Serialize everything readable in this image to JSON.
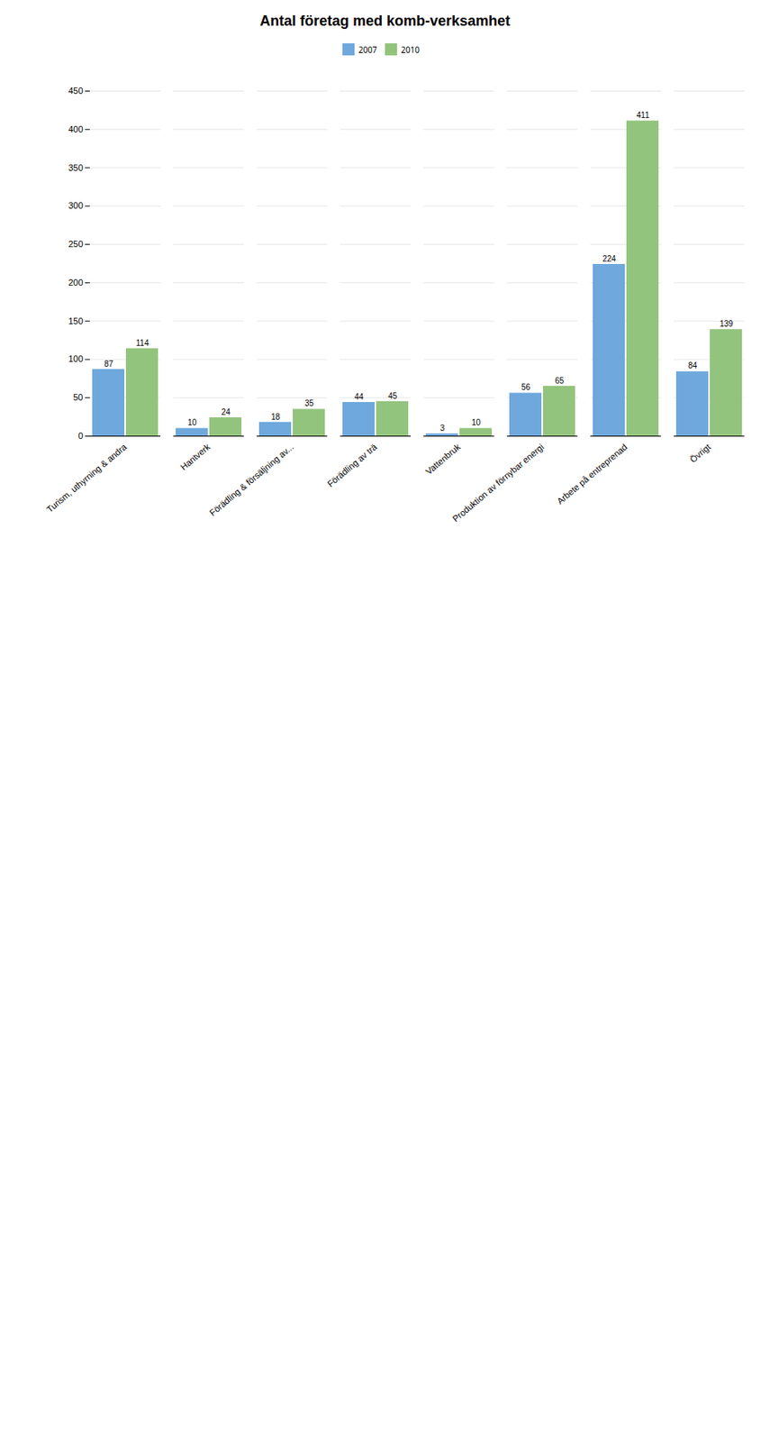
{
  "chart_data": {
    "type": "bar",
    "title": "Antal företag med komb-verksamhet",
    "categories": [
      "Turism, uthyrning & andra",
      "Hantverk",
      "Förädling & försäljning av...",
      "Förädling av trä",
      "Vattenbruk",
      "Produktion av förnybar energi",
      "Arbete på entreprenad",
      "Övrigt"
    ],
    "series": [
      {
        "name": "2007",
        "color": "#6fa8dc",
        "values": [
          87,
          10,
          18,
          44,
          3,
          56,
          224,
          84
        ]
      },
      {
        "name": "2010",
        "color": "#93c47d",
        "values": [
          114,
          24,
          35,
          45,
          10,
          65,
          411,
          139
        ]
      }
    ],
    "ylim": [
      0,
      450
    ],
    "yticks": [
      0,
      50,
      100,
      150,
      200,
      250,
      300,
      350,
      400,
      450
    ],
    "grid": true,
    "legend": "top",
    "data_labels": true
  }
}
